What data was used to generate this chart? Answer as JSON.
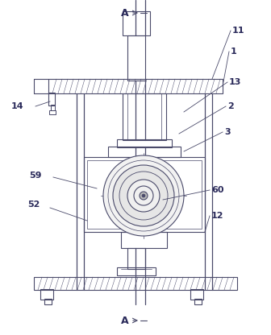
{
  "bg_color": "#ffffff",
  "line_color": "#4a4a6a",
  "label_color": "#2a2a5a",
  "labels": {
    "A": "A",
    "11": "11",
    "1": "1",
    "13": "13",
    "2": "2",
    "3": "3",
    "14": "14",
    "59": "59",
    "52": "52",
    "60": "60",
    "12": "12"
  },
  "figsize": [
    3.36,
    4.16
  ],
  "dpi": 100
}
